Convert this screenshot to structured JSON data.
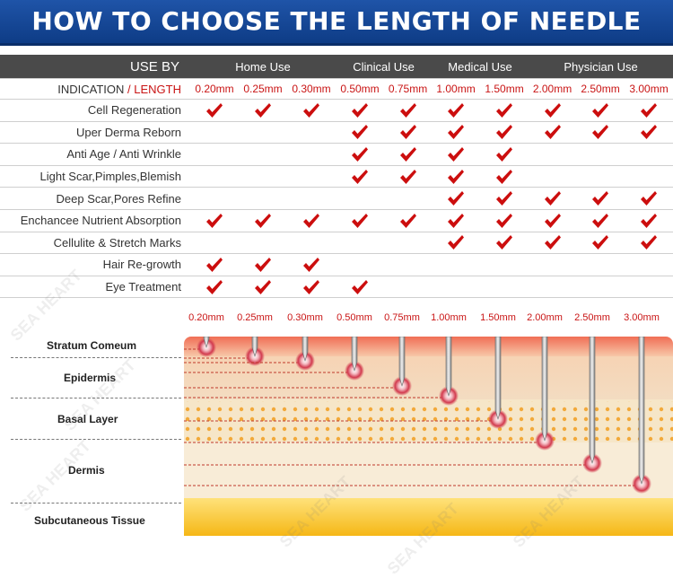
{
  "title": "HOW TO CHOOSE THE LENGTH OF NEEDLE",
  "use_by": {
    "label": "USE BY",
    "groups": [
      "Home Use",
      "Clinical Use",
      "Medical Use",
      "Physician Use"
    ]
  },
  "indication_label": "INDICATION",
  "slash": "/",
  "length_label": "LENGTH",
  "lengths": [
    "0.20mm",
    "0.25mm",
    "0.30mm",
    "0.50mm",
    "0.75mm",
    "1.00mm",
    "1.50mm",
    "2.00mm",
    "2.50mm",
    "3.00mm"
  ],
  "rows": [
    {
      "name": "Cell Regeneration",
      "checks": [
        1,
        1,
        1,
        1,
        1,
        1,
        1,
        1,
        1,
        1
      ]
    },
    {
      "name": "Uper Derma Reborn",
      "checks": [
        0,
        0,
        0,
        1,
        1,
        1,
        1,
        1,
        1,
        1
      ]
    },
    {
      "name": "Anti Age / Anti Wrinkle",
      "checks": [
        0,
        0,
        0,
        1,
        1,
        1,
        1,
        0,
        0,
        0
      ]
    },
    {
      "name": "Light Scar,Pimples,Blemish",
      "checks": [
        0,
        0,
        0,
        1,
        1,
        1,
        1,
        0,
        0,
        0
      ]
    },
    {
      "name": "Deep Scar,Pores Refine",
      "checks": [
        0,
        0,
        0,
        0,
        0,
        1,
        1,
        1,
        1,
        1
      ]
    },
    {
      "name": "Enchancee Nutrient Absorption",
      "checks": [
        1,
        1,
        1,
        1,
        1,
        1,
        1,
        1,
        1,
        1
      ]
    },
    {
      "name": "Cellulite & Stretch Marks",
      "checks": [
        0,
        0,
        0,
        0,
        0,
        1,
        1,
        1,
        1,
        1
      ]
    },
    {
      "name": "Hair Re-growth",
      "checks": [
        1,
        1,
        1,
        0,
        0,
        0,
        0,
        0,
        0,
        0
      ]
    },
    {
      "name": "Eye Treatment",
      "checks": [
        1,
        1,
        1,
        1,
        0,
        0,
        0,
        0,
        0,
        0
      ]
    }
  ],
  "skin_layers": [
    "Stratum Comeum",
    "Epidermis",
    "Basal Layer",
    "Dermis",
    "Subcutaneous Tissue"
  ],
  "watermark": "SEA HEART",
  "colors": {
    "banner": "#1f54a8",
    "check": "#cc0e0e",
    "header": "#4a4a4a",
    "accent": "#c91414"
  }
}
